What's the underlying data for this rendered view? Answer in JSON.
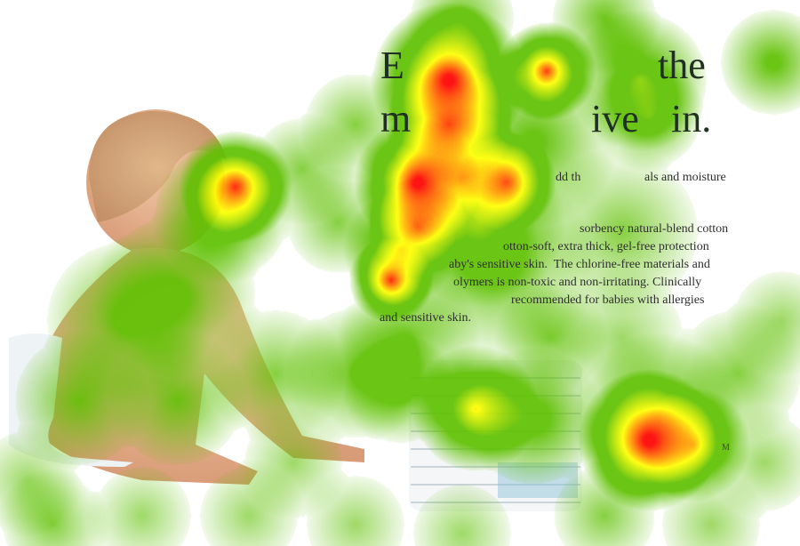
{
  "ad": {
    "headline_fragments": [
      "E",
      "the",
      "m",
      "ive",
      "in."
    ],
    "body_fragments": [
      "dd th",
      "als and moisture",
      "sorbency natural-blend cotton",
      "otton-soft, extra thick, gel-free protection",
      "aby's sensitive skin.  The chlorine-free materials and",
      "olymers is non-toxic and non-irritating. Clinically",
      "recommended for babies with allergies",
      "and sensitive skin."
    ],
    "trademark": "M"
  },
  "heatmap": {
    "colors": {
      "low": "#5ec000",
      "mid": "#ffff00",
      "high": "#ff0000"
    }
  }
}
